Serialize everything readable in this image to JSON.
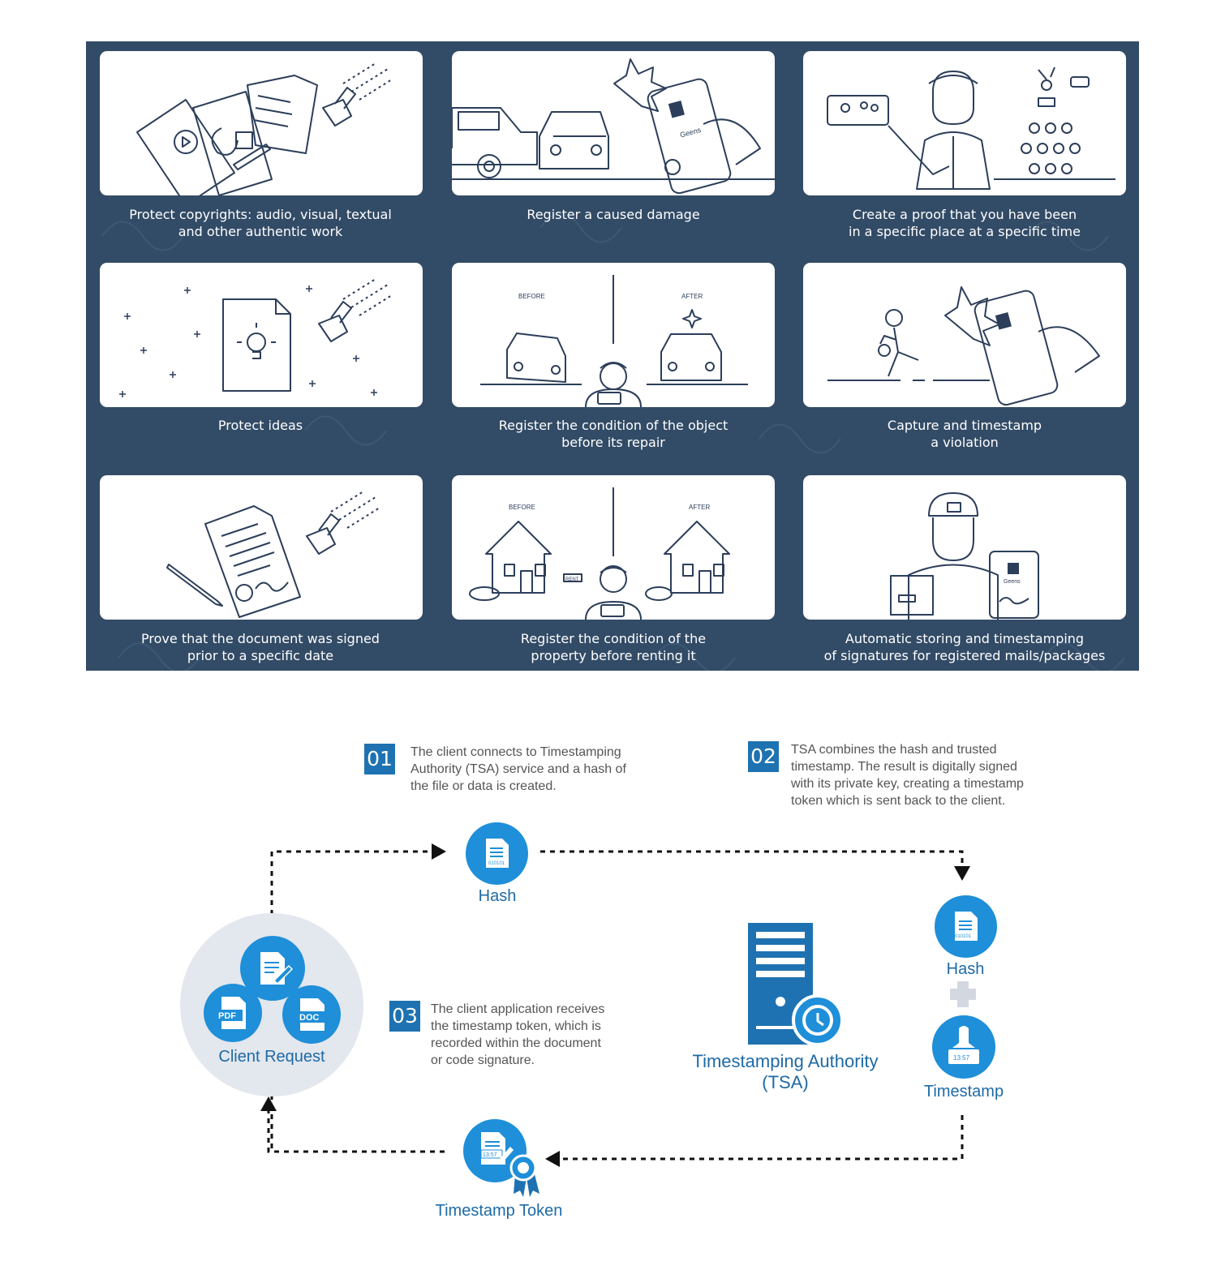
{
  "use_cases": [
    {
      "caption": "Protect copyrights:  audio, visual, textual\nand other authentic work",
      "illustration": "documents-stamp-icon"
    },
    {
      "caption": "Register a caused damage",
      "illustration": "car-crash-phone-icon"
    },
    {
      "caption": "Create a proof that you have been\nin a specific place at a specific time",
      "illustration": "person-event-icon"
    },
    {
      "caption": "Protect ideas",
      "illustration": "idea-document-stamp-icon"
    },
    {
      "caption": "Register the condition of the object\nbefore its repair",
      "illustration": "car-before-after-icon",
      "before_label": "BEFORE",
      "after_label": "AFTER"
    },
    {
      "caption": "Capture and timestamp\na violation",
      "illustration": "thief-phone-icon"
    },
    {
      "caption": "Prove that the document was signed\nprior to a specific date",
      "illustration": "signed-document-stamp-icon"
    },
    {
      "caption": "Register the condition of the\nproperty before renting it",
      "illustration": "house-before-after-icon",
      "before_label": "BEFORE",
      "after_label": "AFTER",
      "sign_label": "RENT"
    },
    {
      "caption": "Automatic storing and timestamping\nof  signatures for registered mails/packages",
      "illustration": "courier-tablet-icon",
      "tablet_brand": "Geens"
    }
  ],
  "phone_brand": "Geens",
  "flow": {
    "steps": [
      {
        "number": "01",
        "text": "The client connects to Timestamping\nAuthority (TSA) service and a hash of\nthe file or data is created."
      },
      {
        "number": "02",
        "text": "TSA combines the hash and trusted\ntimestamp. The result is digitally signed\nwith its private key, creating a timestamp\ntoken which is sent back to the client."
      },
      {
        "number": "03",
        "text": "The client application receives\nthe timestamp token, which is\nrecorded within the document\nor code signature."
      }
    ],
    "client_request": "Client Request",
    "pdf_label": "PDF",
    "doc_label": "DOC",
    "hash_top": "Hash",
    "hash_right": "Hash",
    "binary_text": "010101",
    "timestamp": "Timestamp",
    "time_text": "13:57",
    "tsa": "Timestamping Authority\n(TSA)",
    "token": "Timestamp Token"
  },
  "colors": {
    "panel": "#324b66",
    "accent": "#1e8fd8",
    "numbox": "#1e72b1",
    "line_art": "#2c3e5a",
    "label": "#1e6aa6"
  }
}
